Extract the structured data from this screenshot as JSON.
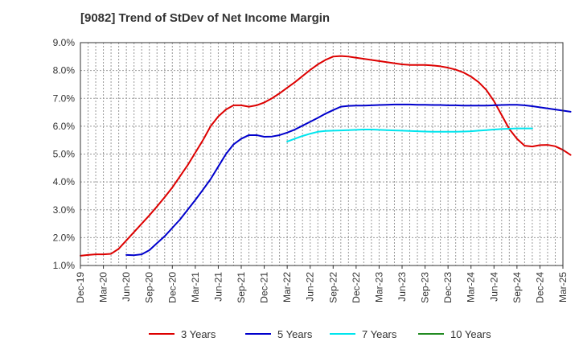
{
  "chart_data": {
    "type": "line",
    "title": "[9082]  Trend of StDev of Net Income Margin",
    "xlabel": "",
    "ylabel": "",
    "ylim": [
      1.0,
      9.0
    ],
    "ytick_labels": [
      "1.0%",
      "2.0%",
      "3.0%",
      "4.0%",
      "5.0%",
      "6.0%",
      "7.0%",
      "8.0%",
      "9.0%"
    ],
    "xtick_labels": [
      "Dec-19",
      "Mar-20",
      "Jun-20",
      "Sep-20",
      "Dec-20",
      "Mar-21",
      "Jun-21",
      "Sep-21",
      "Dec-21",
      "Mar-22",
      "Jun-22",
      "Sep-22",
      "Dec-22",
      "Mar-23",
      "Jun-23",
      "Sep-23",
      "Dec-23",
      "Mar-24",
      "Jun-24",
      "Sep-24",
      "Dec-24",
      "Mar-25"
    ],
    "x_unit": "month index from Dec-19",
    "grid": true,
    "legend_position": "bottom",
    "series": [
      {
        "name": "3 Years",
        "color": "#dd0000",
        "points": [
          [
            0,
            1.35
          ],
          [
            1,
            1.38
          ],
          [
            2,
            1.4
          ],
          [
            3,
            1.4
          ],
          [
            4,
            1.42
          ],
          [
            5,
            1.6
          ],
          [
            6,
            1.9
          ],
          [
            7,
            2.2
          ],
          [
            8,
            2.5
          ],
          [
            9,
            2.8
          ],
          [
            10,
            3.12
          ],
          [
            11,
            3.45
          ],
          [
            12,
            3.8
          ],
          [
            13,
            4.2
          ],
          [
            14,
            4.6
          ],
          [
            15,
            5.05
          ],
          [
            16,
            5.5
          ],
          [
            17,
            6.0
          ],
          [
            18,
            6.35
          ],
          [
            19,
            6.6
          ],
          [
            20,
            6.75
          ],
          [
            21,
            6.75
          ],
          [
            22,
            6.7
          ],
          [
            23,
            6.75
          ],
          [
            24,
            6.85
          ],
          [
            25,
            7.0
          ],
          [
            26,
            7.18
          ],
          [
            27,
            7.38
          ],
          [
            28,
            7.58
          ],
          [
            29,
            7.8
          ],
          [
            30,
            8.02
          ],
          [
            31,
            8.22
          ],
          [
            32,
            8.38
          ],
          [
            33,
            8.5
          ],
          [
            34,
            8.52
          ],
          [
            35,
            8.5
          ],
          [
            36,
            8.46
          ],
          [
            37,
            8.42
          ],
          [
            38,
            8.38
          ],
          [
            39,
            8.34
          ],
          [
            40,
            8.3
          ],
          [
            41,
            8.26
          ],
          [
            42,
            8.22
          ],
          [
            43,
            8.2
          ],
          [
            44,
            8.2
          ],
          [
            45,
            8.2
          ],
          [
            46,
            8.18
          ],
          [
            47,
            8.15
          ],
          [
            48,
            8.1
          ],
          [
            49,
            8.03
          ],
          [
            50,
            7.93
          ],
          [
            51,
            7.78
          ],
          [
            52,
            7.58
          ],
          [
            53,
            7.3
          ],
          [
            54,
            6.9
          ],
          [
            55,
            6.4
          ],
          [
            56,
            5.9
          ],
          [
            57,
            5.55
          ],
          [
            58,
            5.3
          ],
          [
            59,
            5.27
          ],
          [
            60,
            5.32
          ],
          [
            61,
            5.33
          ],
          [
            62,
            5.28
          ],
          [
            63,
            5.15
          ],
          [
            64,
            4.97
          ]
        ]
      },
      {
        "name": "5 Years",
        "color": "#0000cc",
        "points": [
          [
            6,
            1.38
          ],
          [
            7,
            1.37
          ],
          [
            8,
            1.4
          ],
          [
            9,
            1.55
          ],
          [
            10,
            1.8
          ],
          [
            11,
            2.05
          ],
          [
            12,
            2.35
          ],
          [
            13,
            2.65
          ],
          [
            14,
            3.0
          ],
          [
            15,
            3.35
          ],
          [
            16,
            3.72
          ],
          [
            17,
            4.1
          ],
          [
            18,
            4.55
          ],
          [
            19,
            5.0
          ],
          [
            20,
            5.35
          ],
          [
            21,
            5.55
          ],
          [
            22,
            5.68
          ],
          [
            23,
            5.68
          ],
          [
            24,
            5.62
          ],
          [
            25,
            5.63
          ],
          [
            26,
            5.68
          ],
          [
            27,
            5.77
          ],
          [
            28,
            5.88
          ],
          [
            29,
            6.02
          ],
          [
            30,
            6.16
          ],
          [
            31,
            6.3
          ],
          [
            32,
            6.45
          ],
          [
            33,
            6.58
          ],
          [
            34,
            6.7
          ],
          [
            35,
            6.73
          ],
          [
            36,
            6.74
          ],
          [
            37,
            6.74
          ],
          [
            38,
            6.75
          ],
          [
            39,
            6.76
          ],
          [
            40,
            6.77
          ],
          [
            41,
            6.78
          ],
          [
            42,
            6.78
          ],
          [
            43,
            6.78
          ],
          [
            44,
            6.77
          ],
          [
            45,
            6.77
          ],
          [
            46,
            6.76
          ],
          [
            47,
            6.76
          ],
          [
            48,
            6.75
          ],
          [
            49,
            6.75
          ],
          [
            50,
            6.74
          ],
          [
            51,
            6.74
          ],
          [
            52,
            6.74
          ],
          [
            53,
            6.74
          ],
          [
            54,
            6.75
          ],
          [
            55,
            6.76
          ],
          [
            56,
            6.77
          ],
          [
            57,
            6.77
          ],
          [
            58,
            6.75
          ],
          [
            59,
            6.72
          ],
          [
            60,
            6.68
          ],
          [
            61,
            6.64
          ],
          [
            62,
            6.6
          ],
          [
            63,
            6.56
          ],
          [
            64,
            6.52
          ]
        ]
      },
      {
        "name": "7 Years",
        "color": "#00e5ee",
        "points": [
          [
            27,
            5.45
          ],
          [
            28,
            5.55
          ],
          [
            29,
            5.65
          ],
          [
            30,
            5.73
          ],
          [
            31,
            5.8
          ],
          [
            32,
            5.83
          ],
          [
            33,
            5.84
          ],
          [
            34,
            5.85
          ],
          [
            35,
            5.86
          ],
          [
            36,
            5.87
          ],
          [
            37,
            5.88
          ],
          [
            38,
            5.88
          ],
          [
            39,
            5.87
          ],
          [
            40,
            5.86
          ],
          [
            41,
            5.85
          ],
          [
            42,
            5.84
          ],
          [
            43,
            5.83
          ],
          [
            44,
            5.82
          ],
          [
            45,
            5.81
          ],
          [
            46,
            5.8
          ],
          [
            47,
            5.8
          ],
          [
            48,
            5.8
          ],
          [
            49,
            5.8
          ],
          [
            50,
            5.81
          ],
          [
            51,
            5.82
          ],
          [
            52,
            5.84
          ],
          [
            53,
            5.86
          ],
          [
            54,
            5.88
          ],
          [
            55,
            5.9
          ],
          [
            56,
            5.91
          ],
          [
            57,
            5.92
          ],
          [
            58,
            5.92
          ],
          [
            59,
            5.92
          ]
        ]
      },
      {
        "name": "10 Years",
        "color": "#228b22",
        "points": []
      }
    ]
  }
}
